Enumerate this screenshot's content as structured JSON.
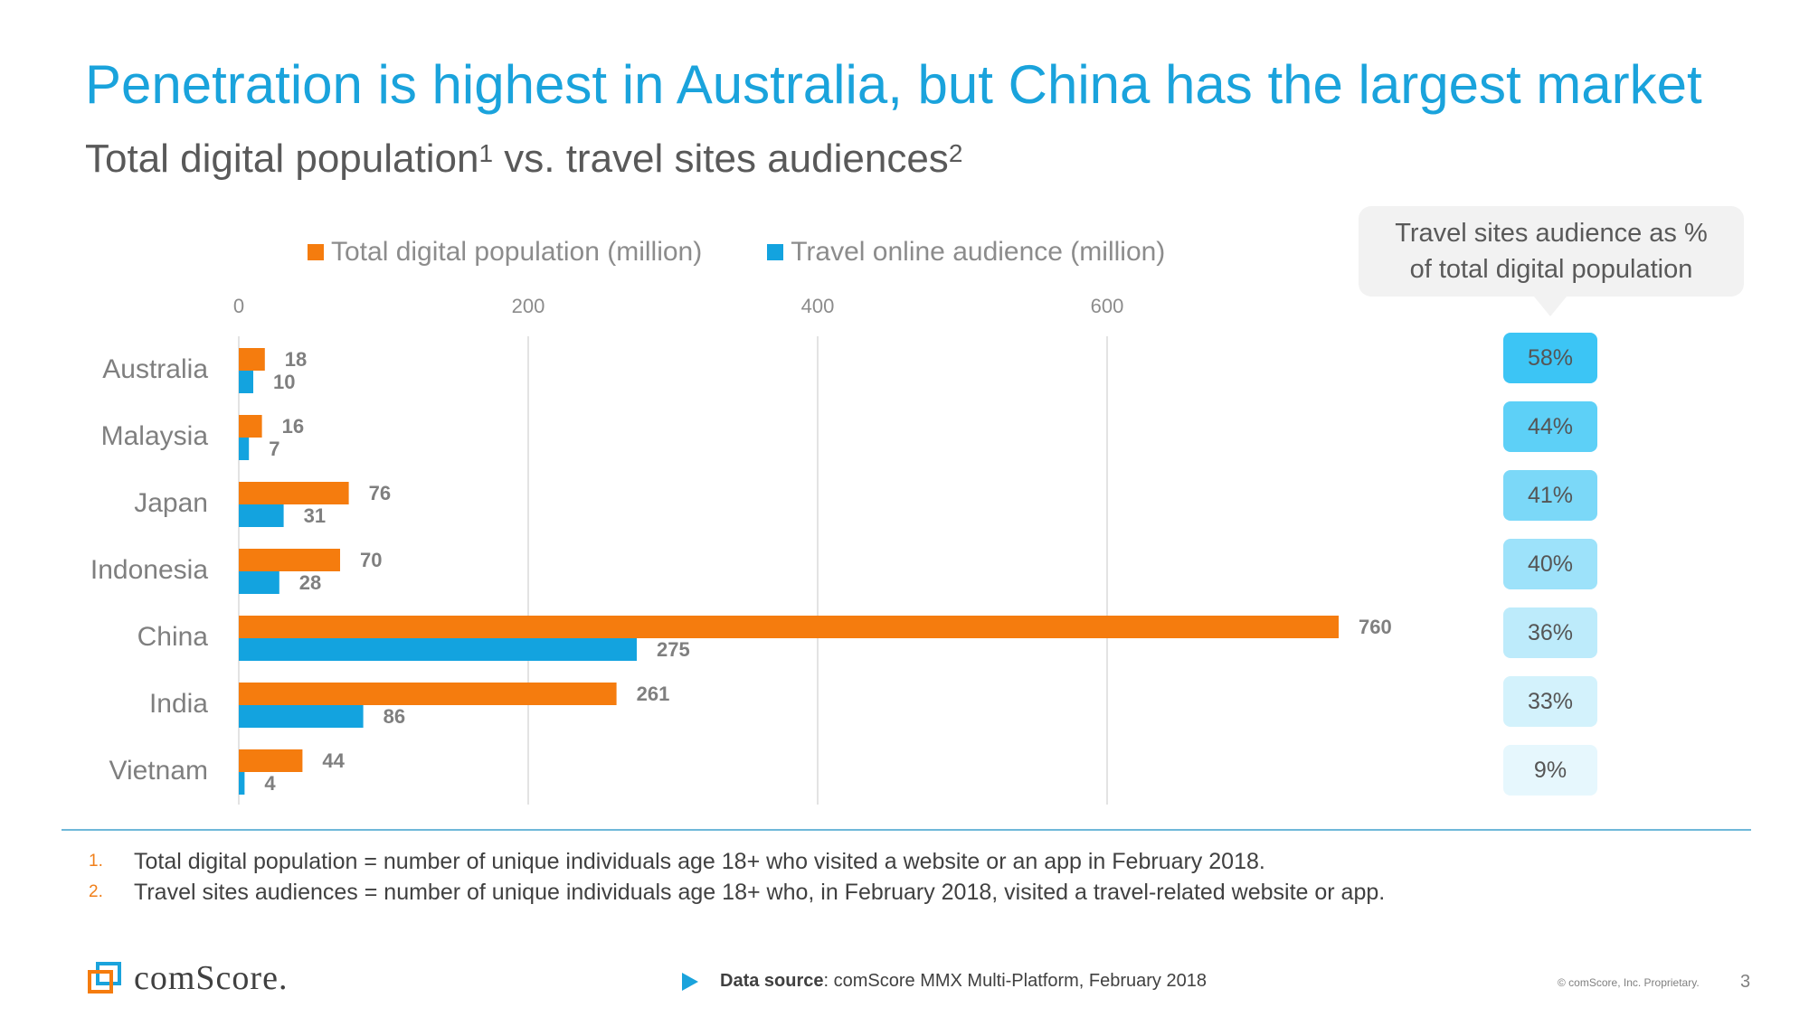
{
  "header": {
    "title": "Penetration is highest in Australia, but China has the largest market",
    "subtitle_part1": "Total digital population",
    "subtitle_sup1": "1",
    "subtitle_part2": " vs. travel sites audiences",
    "subtitle_sup2": "2"
  },
  "colors": {
    "title": "#1aa3dc",
    "total_series": "#f57c0e",
    "travel_series": "#13a3df",
    "gridline": "#e3e3e3"
  },
  "chart_data": {
    "type": "bar",
    "orientation": "horizontal",
    "categories": [
      "Australia",
      "Malaysia",
      "Japan",
      "Indonesia",
      "China",
      "India",
      "Vietnam"
    ],
    "series": [
      {
        "name": "Total digital population (million)",
        "color": "#f57c0e",
        "values": [
          18,
          16,
          76,
          70,
          760,
          261,
          44
        ]
      },
      {
        "name": "Travel online audience (million)",
        "color": "#13a3df",
        "values": [
          10,
          7,
          31,
          28,
          275,
          86,
          4
        ]
      }
    ],
    "x_ticks": [
      0,
      200,
      400,
      600
    ],
    "xlim": [
      0,
      800
    ],
    "legend": "top",
    "grid": true
  },
  "callout": {
    "line1": "Travel sites audience as %",
    "line2": "of total digital population"
  },
  "penetration": [
    {
      "value": "58%",
      "color": "#3cc5f5"
    },
    {
      "value": "44%",
      "color": "#5dd0f7"
    },
    {
      "value": "41%",
      "color": "#7bd8f8"
    },
    {
      "value": "40%",
      "color": "#9de2fa"
    },
    {
      "value": "36%",
      "color": "#bdebfb"
    },
    {
      "value": "33%",
      "color": "#d3f2fc"
    },
    {
      "value": "9%",
      "color": "#e6f7fd"
    }
  ],
  "footnotes": [
    {
      "num": "1.",
      "text": "Total digital population = number of unique individuals age 18+ who visited a website or an app in February 2018."
    },
    {
      "num": "2.",
      "text": "Travel sites audiences  = number of unique individuals age 18+ who, in February 2018, visited a travel-related website or app."
    }
  ],
  "footer": {
    "logo_text": "comScore.",
    "source_label": "Data source",
    "source_text": ": comScore MMX Multi-Platform, February 2018",
    "copyright": "© comScore, Inc. Proprietary.",
    "page": "3"
  }
}
